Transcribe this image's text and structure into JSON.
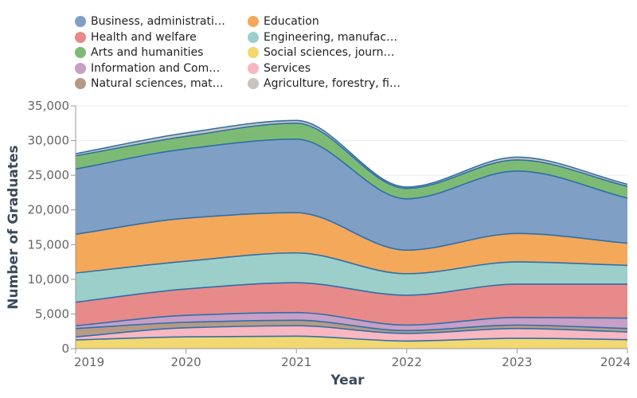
{
  "chart_data": {
    "type": "area",
    "stacked": true,
    "xlabel": "Year",
    "ylabel": "Number of Graduates",
    "x": [
      2019,
      2020,
      2021,
      2022,
      2023,
      2024
    ],
    "x_tick_labels": [
      "2019",
      "2020",
      "2021",
      "2022",
      "2023",
      "2024"
    ],
    "ylim": [
      0,
      35000
    ],
    "y_tick_labels": [
      "0",
      "5,000",
      "10,000",
      "15,000",
      "20,000",
      "25,000",
      "30,000",
      "35,000"
    ],
    "y_ticks": [
      0,
      5000,
      10000,
      15000,
      20000,
      25000,
      30000,
      35000
    ],
    "grid": true,
    "legend_position": "top-left",
    "legend": [
      "Business, administrati…",
      "Education",
      "Health and welfare",
      "Engineering, manufac…",
      "Arts and humanities",
      "Social sciences, journ…",
      "Information and Com…",
      "Services",
      "Natural sciences, mat…",
      "Agriculture, forestry, fi…"
    ],
    "line_color": "#2f6fa8",
    "series_bottom_to_top": [
      {
        "name": "Social sciences, journ…",
        "color": "#f2d872",
        "values": [
          1260,
          1700,
          1800,
          1100,
          1500,
          1300
        ]
      },
      {
        "name": "Services",
        "color": "#f9b7c1",
        "values": [
          440,
          1300,
          1500,
          1100,
          1400,
          1100
        ]
      },
      {
        "name": "Natural sciences, mat…",
        "color": "#b59b87",
        "values": [
          1200,
          800,
          800,
          400,
          500,
          500
        ]
      },
      {
        "name": "Information and Com…",
        "color": "#c79fc7",
        "values": [
          400,
          1000,
          1100,
          800,
          1100,
          1500
        ]
      },
      {
        "name": "Health and welfare",
        "color": "#e88a8a",
        "values": [
          3400,
          3800,
          4300,
          4300,
          4800,
          4900
        ]
      },
      {
        "name": "Engineering, manufac…",
        "color": "#9ccfc9",
        "values": [
          4200,
          4000,
          4300,
          3100,
          3200,
          2700
        ]
      },
      {
        "name": "Education",
        "color": "#f4a85a",
        "values": [
          5600,
          6200,
          5800,
          3400,
          4100,
          3200
        ]
      },
      {
        "name": "Business, administrati…",
        "color": "#7f9fc4",
        "values": [
          9400,
          10000,
          10600,
          7400,
          9000,
          6500
        ]
      },
      {
        "name": "Arts and humanities",
        "color": "#7dbb74",
        "values": [
          1900,
          1800,
          2300,
          1500,
          1600,
          1700
        ]
      },
      {
        "name": "Agriculture, forestry, fi…",
        "color": "#c9c4bf",
        "values": [
          300,
          500,
          400,
          200,
          400,
          300
        ]
      }
    ]
  }
}
